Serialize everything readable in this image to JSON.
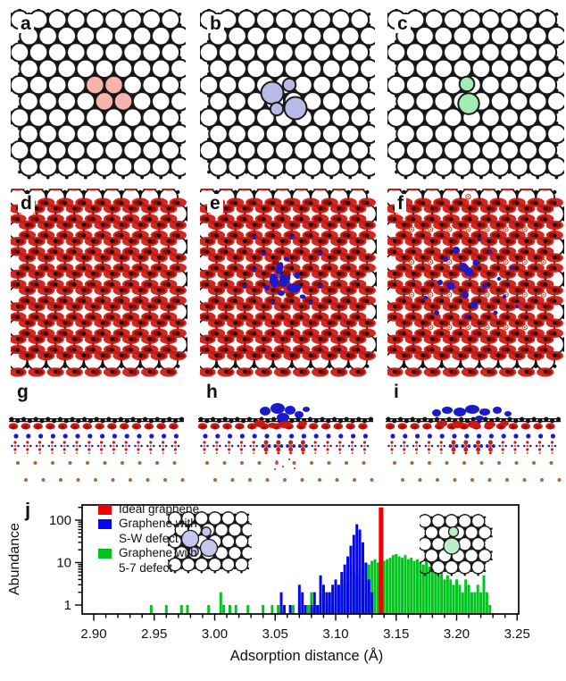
{
  "figure": {
    "row1": [
      {
        "label": "a",
        "kind": "ideal-graphene"
      },
      {
        "label": "b",
        "kind": "stone-wales-defect"
      },
      {
        "label": "c",
        "kind": "5-7-defect"
      }
    ],
    "row2": [
      {
        "label": "d",
        "kind": "charge-density-top-ideal"
      },
      {
        "label": "e",
        "kind": "charge-density-top-sw"
      },
      {
        "label": "f",
        "kind": "charge-density-top-57"
      }
    ],
    "row3": [
      {
        "label": "g",
        "kind": "charge-density-side-ideal"
      },
      {
        "label": "h",
        "kind": "charge-density-side-sw"
      },
      {
        "label": "i",
        "kind": "charge-density-side-57"
      }
    ]
  },
  "colors": {
    "highlight_pink": "#f6b4ac",
    "highlight_lavender": "#b9b9e8",
    "highlight_green": "#a5ebb4",
    "inset_lavender": "#c7c7ee",
    "inset_green": "#bceec8",
    "charge_red": "#cf1810",
    "charge_dark_red": "#8f0f08",
    "charge_blue": "#1a1acd",
    "substrate_brown": "#b4623c",
    "bar_red": "#f40000",
    "bar_blue": "#0707ee",
    "bar_green": "#00c41e"
  },
  "chart": {
    "label": "j",
    "xlabel": "Adsorption distance (Å)",
    "ylabel": "Abundance",
    "x_ticks": [
      2.9,
      2.95,
      3.0,
      3.05,
      3.1,
      3.15,
      3.2,
      3.25
    ],
    "y_ticks": [
      1,
      10,
      100
    ],
    "legend": [
      {
        "color": "#f40000",
        "lines": [
          "Ideal graphene"
        ]
      },
      {
        "color": "#0707ee",
        "lines": [
          "Graphene with",
          "S-W defect"
        ]
      },
      {
        "color": "#00c41e",
        "lines": [
          "Graphene with",
          "5-7 defect"
        ]
      }
    ]
  },
  "chart_data": {
    "type": "bar",
    "title": "",
    "xlabel": "Adsorption distance (Å)",
    "ylabel": "Abundance",
    "x_range": [
      2.9,
      3.25
    ],
    "y_scale": "log",
    "y_range": [
      0.6,
      230
    ],
    "bin_width": 0.0025,
    "legend_position": "top-left",
    "series": [
      {
        "name": "Graphene with 5-7 defect",
        "color": "#00c41e",
        "points": [
          [
            2.9475,
            1
          ],
          [
            2.96,
            1
          ],
          [
            2.9725,
            1
          ],
          [
            2.9775,
            1
          ],
          [
            2.995,
            1
          ],
          [
            3.005,
            2
          ],
          [
            3.0075,
            1
          ],
          [
            3.0125,
            1
          ],
          [
            3.0175,
            1
          ],
          [
            3.0275,
            1
          ],
          [
            3.04,
            1
          ],
          [
            3.0475,
            1
          ],
          [
            3.0525,
            1
          ],
          [
            3.0575,
            1
          ],
          [
            3.0625,
            1
          ],
          [
            3.065,
            1
          ],
          [
            3.07,
            1
          ],
          [
            3.075,
            1
          ],
          [
            3.0775,
            1
          ],
          [
            3.08,
            2
          ],
          [
            3.0825,
            1
          ],
          [
            3.085,
            1
          ],
          [
            3.0875,
            1
          ],
          [
            3.09,
            2
          ],
          [
            3.0925,
            1
          ],
          [
            3.095,
            2
          ],
          [
            3.0975,
            1
          ],
          [
            3.1,
            2
          ],
          [
            3.1025,
            3
          ],
          [
            3.105,
            4
          ],
          [
            3.1075,
            3
          ],
          [
            3.11,
            3
          ],
          [
            3.1125,
            4
          ],
          [
            3.115,
            6
          ],
          [
            3.1175,
            5
          ],
          [
            3.12,
            7
          ],
          [
            3.1225,
            8
          ],
          [
            3.125,
            10
          ],
          [
            3.1275,
            9
          ],
          [
            3.13,
            11
          ],
          [
            3.1325,
            12
          ],
          [
            3.135,
            10
          ],
          [
            3.1375,
            9
          ],
          [
            3.14,
            11
          ],
          [
            3.1425,
            12
          ],
          [
            3.145,
            13
          ],
          [
            3.1475,
            15
          ],
          [
            3.15,
            16
          ],
          [
            3.1525,
            14
          ],
          [
            3.155,
            13
          ],
          [
            3.1575,
            15
          ],
          [
            3.16,
            12
          ],
          [
            3.1625,
            13
          ],
          [
            3.165,
            11
          ],
          [
            3.1675,
            12
          ],
          [
            3.17,
            10
          ],
          [
            3.1725,
            9
          ],
          [
            3.175,
            11
          ],
          [
            3.1775,
            8
          ],
          [
            3.18,
            7
          ],
          [
            3.1825,
            6
          ],
          [
            3.185,
            5
          ],
          [
            3.1875,
            6
          ],
          [
            3.19,
            4
          ],
          [
            3.1925,
            5
          ],
          [
            3.195,
            4
          ],
          [
            3.1975,
            3
          ],
          [
            3.2,
            4
          ],
          [
            3.2025,
            3
          ],
          [
            3.205,
            2
          ],
          [
            3.2075,
            4
          ],
          [
            3.21,
            3
          ],
          [
            3.2125,
            2
          ],
          [
            3.215,
            2
          ],
          [
            3.2175,
            3
          ],
          [
            3.22,
            2
          ],
          [
            3.2225,
            5
          ],
          [
            3.225,
            2
          ],
          [
            3.2275,
            1
          ]
        ]
      },
      {
        "name": "Graphene with S-W defect",
        "color": "#0707ee",
        "points": [
          [
            3.055,
            2
          ],
          [
            3.0575,
            1
          ],
          [
            3.0625,
            1
          ],
          [
            3.07,
            3
          ],
          [
            3.0725,
            2
          ],
          [
            3.075,
            1
          ],
          [
            3.08,
            1
          ],
          [
            3.0825,
            2
          ],
          [
            3.085,
            1
          ],
          [
            3.0875,
            5
          ],
          [
            3.09,
            3
          ],
          [
            3.0925,
            2
          ],
          [
            3.095,
            2
          ],
          [
            3.0975,
            3
          ],
          [
            3.1,
            4
          ],
          [
            3.1025,
            3
          ],
          [
            3.105,
            6
          ],
          [
            3.1075,
            9
          ],
          [
            3.11,
            14
          ],
          [
            3.1125,
            25
          ],
          [
            3.115,
            45
          ],
          [
            3.1175,
            80
          ],
          [
            3.12,
            60
          ],
          [
            3.1225,
            30
          ],
          [
            3.125,
            10
          ],
          [
            3.1275,
            4
          ],
          [
            3.13,
            2
          ]
        ]
      },
      {
        "name": "Ideal graphene",
        "color": "#f40000",
        "points": [
          [
            3.1375,
            200
          ]
        ]
      }
    ]
  }
}
